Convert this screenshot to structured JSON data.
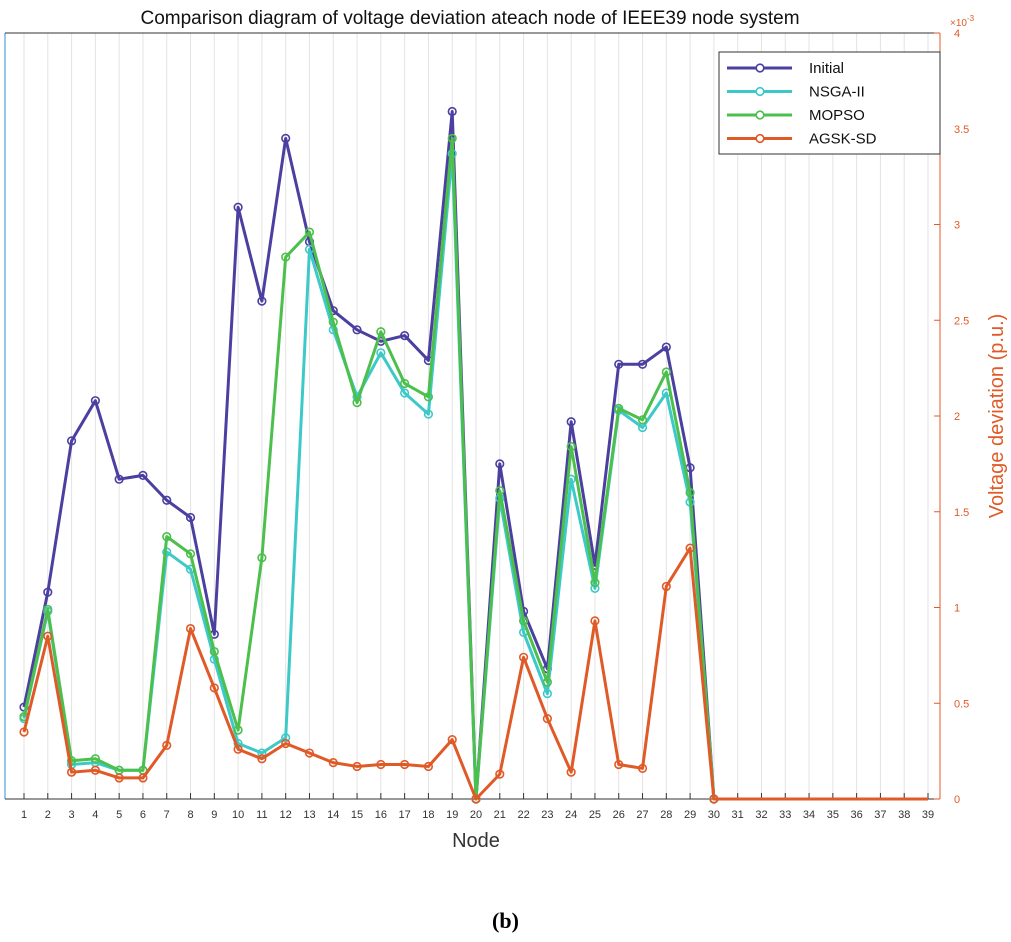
{
  "chart_data": {
    "type": "line",
    "title": "Comparison diagram of voltage deviation ateach node of IEEE39 node system",
    "xlabel": "Node",
    "ylabel": "Voltage deviation (p.u.)",
    "y_exponent_label": "×10",
    "y_exponent_power": "-3",
    "ylim": [
      0,
      4
    ],
    "yticks": [
      "0",
      "0.5",
      "1",
      "1.5",
      "2",
      "2.5",
      "3",
      "3.5",
      "4"
    ],
    "x": [
      1,
      2,
      3,
      4,
      5,
      6,
      7,
      8,
      9,
      10,
      11,
      12,
      13,
      14,
      15,
      16,
      17,
      18,
      19,
      20,
      21,
      22,
      23,
      24,
      25,
      26,
      27,
      28,
      29,
      30,
      31,
      32,
      33,
      34,
      35,
      36,
      37,
      38,
      39
    ],
    "xticks": [
      "1",
      "2",
      "3",
      "4",
      "5",
      "6",
      "7",
      "8",
      "9",
      "10",
      "11",
      "12",
      "13",
      "14",
      "15",
      "16",
      "17",
      "18",
      "19",
      "20",
      "21",
      "22",
      "23",
      "24",
      "25",
      "26",
      "27",
      "28",
      "29",
      "30",
      "31",
      "32",
      "33",
      "34",
      "35",
      "36",
      "37",
      "38",
      "39"
    ],
    "grid": "vertical",
    "legend_position": "top-right",
    "series": [
      {
        "name": "Initial",
        "color": "#4b3fa0",
        "values": [
          0.48,
          1.08,
          1.87,
          2.08,
          1.67,
          1.69,
          1.56,
          1.47,
          0.86,
          3.09,
          2.6,
          3.45,
          2.91,
          2.55,
          2.45,
          2.39,
          2.42,
          2.29,
          3.59,
          0,
          1.75,
          0.98,
          0.68,
          1.97,
          1.22,
          2.27,
          2.27,
          2.36,
          1.73,
          0,
          0,
          0,
          0,
          0,
          0,
          0,
          0,
          0,
          0
        ]
      },
      {
        "name": "NSGA-II",
        "color": "#3ec9c9",
        "values": [
          0.42,
          0.98,
          0.18,
          0.19,
          0.15,
          0.15,
          1.29,
          1.2,
          0.73,
          0.29,
          0.24,
          0.32,
          2.87,
          2.45,
          2.1,
          2.33,
          2.12,
          2.01,
          3.37,
          0,
          1.57,
          0.87,
          0.55,
          1.67,
          1.1,
          2.03,
          1.94,
          2.12,
          1.55,
          0,
          0,
          0,
          0,
          0,
          0,
          0,
          0,
          0,
          0
        ]
      },
      {
        "name": "MOPSO",
        "color": "#4cbf4c",
        "values": [
          0.43,
          0.99,
          0.2,
          0.21,
          0.15,
          0.15,
          1.37,
          1.28,
          0.77,
          0.36,
          1.26,
          2.83,
          2.96,
          2.49,
          2.07,
          2.44,
          2.17,
          2.1,
          3.45,
          0,
          1.61,
          0.93,
          0.61,
          1.84,
          1.13,
          2.04,
          1.98,
          2.23,
          1.6,
          0,
          0,
          0,
          0,
          0,
          0,
          0,
          0,
          0,
          0
        ]
      },
      {
        "name": "AGSK-SD",
        "color": "#e05a28",
        "values": [
          0.35,
          0.85,
          0.14,
          0.15,
          0.11,
          0.11,
          0.28,
          0.89,
          0.58,
          0.26,
          0.21,
          0.29,
          0.24,
          0.19,
          0.17,
          0.18,
          0.18,
          0.17,
          0.31,
          0,
          0.13,
          0.74,
          0.42,
          0.14,
          0.93,
          0.18,
          0.16,
          1.11,
          1.31,
          0,
          0,
          0,
          0,
          0,
          0,
          0,
          0,
          0,
          0
        ]
      }
    ]
  },
  "caption": "(b)"
}
